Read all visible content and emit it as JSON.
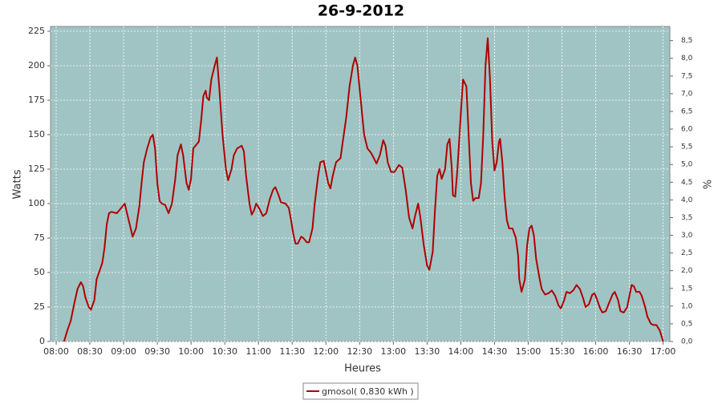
{
  "chart_data": {
    "type": "line",
    "title": "26-9-2012",
    "x_label": "Heures",
    "y_label": "Watts",
    "y2_label": "%",
    "background": "#a0c4c4",
    "grid": true,
    "x": [
      487,
      490,
      493,
      496,
      499,
      502,
      504,
      506,
      509,
      511,
      514,
      516,
      519,
      521,
      523,
      525,
      527,
      529,
      534,
      537,
      541,
      543,
      546,
      548,
      551,
      554,
      556,
      558,
      561,
      564,
      566,
      568,
      570,
      572,
      574,
      577,
      580,
      583,
      586,
      588,
      591,
      593,
      596,
      598,
      600,
      602,
      605,
      607,
      609,
      611,
      613,
      614,
      616,
      618,
      621,
      623,
      625,
      628,
      631,
      633,
      636,
      638,
      641,
      645,
      647,
      649,
      652,
      654,
      656,
      658,
      661,
      664,
      667,
      670,
      673,
      675,
      678,
      680,
      684,
      687,
      689,
      691,
      693,
      695,
      698,
      700,
      703,
      705,
      708,
      710,
      713,
      715,
      718,
      720,
      722,
      724,
      726,
      729,
      733,
      735,
      738,
      741,
      744,
      746,
      748,
      751,
      754,
      757,
      760,
      762,
      765,
      768,
      771,
      773,
      775,
      778,
      781,
      785,
      788,
      791,
      794,
      797,
      799,
      802,
      804,
      807,
      810,
      812,
      815,
      817,
      819,
      821,
      823,
      826,
      828,
      830,
      832,
      833,
      835,
      837,
      840,
      842,
      845,
      847,
      849,
      851,
      853,
      856,
      858,
      860,
      862,
      864,
      866,
      868,
      870,
      872,
      874,
      875,
      877,
      879,
      881,
      883,
      886,
      889,
      891,
      892,
      894,
      897,
      899,
      901,
      903,
      905,
      907,
      910,
      912,
      915,
      918,
      921,
      924,
      927,
      929,
      932,
      934,
      937,
      940,
      943,
      946,
      949,
      951,
      954,
      957,
      959,
      961,
      964,
      966,
      969,
      972,
      975,
      977,
      980,
      982,
      985,
      988,
      990,
      992,
      994,
      996,
      999,
      1001,
      1004,
      1006,
      1009,
      1011,
      1014,
      1017,
      1020
    ],
    "series": [
      {
        "name": "gmosol( 0,830 kWh )",
        "color": "#b00000",
        "values": [
          0,
          8,
          15,
          27,
          38,
          43,
          40,
          32,
          25,
          23,
          30,
          45,
          52,
          57,
          68,
          85,
          93,
          94,
          93,
          96,
          100,
          93,
          83,
          76,
          82,
          98,
          115,
          130,
          140,
          148,
          150,
          140,
          115,
          102,
          100,
          99,
          93,
          100,
          118,
          135,
          143,
          135,
          115,
          110,
          118,
          140,
          143,
          145,
          160,
          178,
          182,
          177,
          175,
          190,
          200,
          206,
          185,
          150,
          125,
          117,
          125,
          135,
          140,
          142,
          138,
          120,
          100,
          92,
          95,
          100,
          96,
          91,
          93,
          103,
          110,
          112,
          106,
          101,
          100,
          97,
          88,
          78,
          71,
          71,
          76,
          75,
          72,
          72,
          82,
          100,
          120,
          130,
          131,
          123,
          115,
          111,
          120,
          130,
          133,
          145,
          162,
          185,
          200,
          206,
          200,
          175,
          150,
          140,
          137,
          134,
          129,
          135,
          146,
          142,
          130,
          123,
          123,
          128,
          126,
          110,
          90,
          82,
          90,
          100,
          90,
          70,
          55,
          52,
          65,
          95,
          120,
          125,
          118,
          125,
          143,
          147,
          125,
          106,
          105,
          125,
          165,
          190,
          185,
          150,
          115,
          102,
          104,
          104,
          115,
          150,
          200,
          220,
          190,
          145,
          124,
          130,
          145,
          147,
          130,
          105,
          88,
          82,
          82,
          75,
          62,
          45,
          36,
          45,
          70,
          82,
          84,
          77,
          60,
          46,
          38,
          34,
          35,
          37,
          33,
          26,
          24,
          30,
          36,
          35,
          37,
          41,
          38,
          31,
          25,
          27,
          34,
          35,
          31,
          24,
          21,
          22,
          28,
          34,
          36,
          30,
          22,
          21,
          25,
          33,
          41,
          40,
          36,
          36,
          33,
          25,
          18,
          13,
          12,
          12,
          8,
          0
        ]
      }
    ],
    "xlim": [
      475,
      1026
    ],
    "xticks": [
      {
        "value": 480,
        "label": "08:00"
      },
      {
        "value": 510,
        "label": "08:30"
      },
      {
        "value": 540,
        "label": "09:00"
      },
      {
        "value": 570,
        "label": "09:30"
      },
      {
        "value": 600,
        "label": "10:00"
      },
      {
        "value": 630,
        "label": "10:30"
      },
      {
        "value": 660,
        "label": "11:00"
      },
      {
        "value": 690,
        "label": "11:30"
      },
      {
        "value": 720,
        "label": "12:00"
      },
      {
        "value": 750,
        "label": "12:30"
      },
      {
        "value": 780,
        "label": "13:00"
      },
      {
        "value": 810,
        "label": "13:30"
      },
      {
        "value": 840,
        "label": "14:00"
      },
      {
        "value": 870,
        "label": "14:30"
      },
      {
        "value": 900,
        "label": "15:00"
      },
      {
        "value": 930,
        "label": "15:30"
      },
      {
        "value": 960,
        "label": "16:00"
      },
      {
        "value": 990,
        "label": "16:30"
      },
      {
        "value": 1020,
        "label": "17:00"
      }
    ],
    "ylim": [
      0,
      228.5
    ],
    "yticks": [
      0,
      25,
      50,
      75,
      100,
      125,
      150,
      175,
      200,
      225
    ],
    "y2lim": [
      0,
      8.9
    ],
    "y2ticks": [
      {
        "value": 0,
        "label": "0,0"
      },
      {
        "value": 0.5,
        "label": "0,5"
      },
      {
        "value": 1,
        "label": "1,0"
      },
      {
        "value": 1.5,
        "label": "1,5"
      },
      {
        "value": 2,
        "label": "2,0"
      },
      {
        "value": 2.5,
        "label": "2,5"
      },
      {
        "value": 3,
        "label": "3,0"
      },
      {
        "value": 3.5,
        "label": "3,5"
      },
      {
        "value": 4,
        "label": "4,0"
      },
      {
        "value": 4.5,
        "label": "4,5"
      },
      {
        "value": 5,
        "label": "5,0"
      },
      {
        "value": 5.5,
        "label": "5,5"
      },
      {
        "value": 6,
        "label": "6,0"
      },
      {
        "value": 6.5,
        "label": "6,5"
      },
      {
        "value": 7,
        "label": "7,0"
      },
      {
        "value": 7.5,
        "label": "7,5"
      },
      {
        "value": 8,
        "label": "8,0"
      },
      {
        "value": 8.5,
        "label": "8,5"
      }
    ]
  }
}
